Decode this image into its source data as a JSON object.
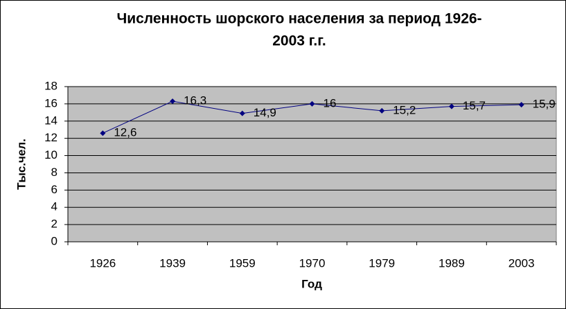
{
  "chart_data": {
    "type": "line",
    "title": [
      "Численность шорского населения за период 1926-",
      "2003 г.г."
    ],
    "x_label": "Год",
    "y_label": "Тыс.чел.",
    "categories": [
      "1926",
      "1939",
      "1959",
      "1970",
      "1979",
      "1989",
      "2003"
    ],
    "series": [
      {
        "color": "#000080",
        "values": [
          12.6,
          16.3,
          14.9,
          16,
          15.2,
          15.7,
          15.9
        ],
        "value_labels": [
          "12,6",
          "16,3",
          "14,9",
          "16",
          "15,2",
          "15,7",
          "15,9"
        ]
      }
    ],
    "ylim": [
      0,
      18
    ],
    "yticks": [
      0,
      2,
      4,
      6,
      8,
      10,
      12,
      14,
      16,
      18
    ],
    "grid": true
  }
}
